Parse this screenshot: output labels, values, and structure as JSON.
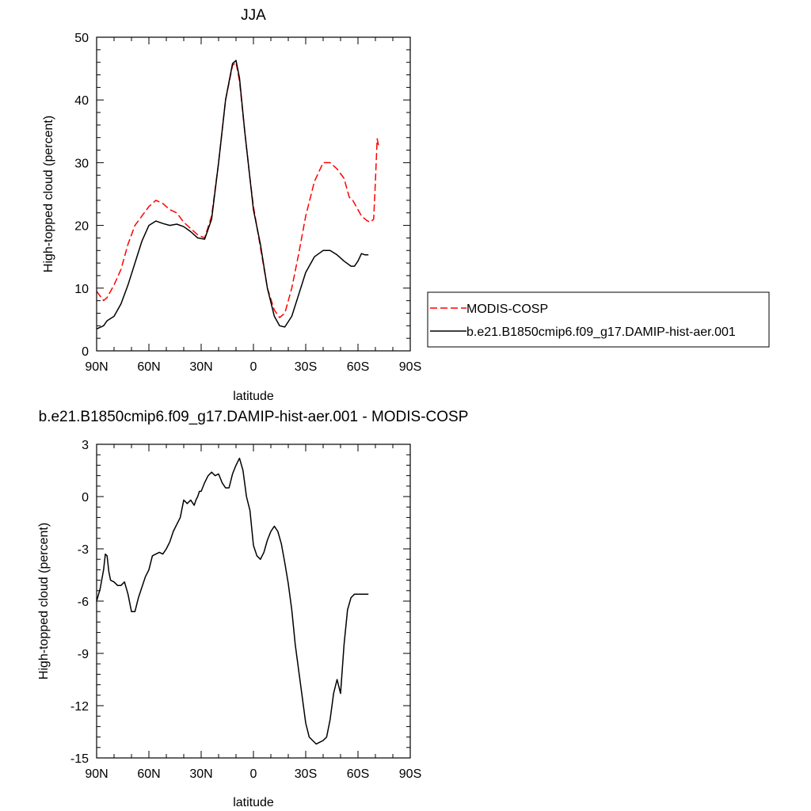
{
  "chart_data": [
    {
      "type": "line",
      "title": "JJA",
      "xlabel": "latitude",
      "ylabel": "High-topped cloud (percent)",
      "xlim": [
        90,
        -90
      ],
      "ylim": [
        0,
        50
      ],
      "xticks": [
        {
          "value": 90,
          "label": "90N"
        },
        {
          "value": 60,
          "label": "60N"
        },
        {
          "value": 30,
          "label": "30N"
        },
        {
          "value": 0,
          "label": "0"
        },
        {
          "value": -30,
          "label": "30S"
        },
        {
          "value": -60,
          "label": "60S"
        },
        {
          "value": -90,
          "label": "90S"
        }
      ],
      "yticks": [
        {
          "value": 0,
          "label": "0"
        },
        {
          "value": 10,
          "label": "10"
        },
        {
          "value": 20,
          "label": "20"
        },
        {
          "value": 30,
          "label": "30"
        },
        {
          "value": 40,
          "label": "40"
        },
        {
          "value": 50,
          "label": "50"
        }
      ],
      "legend": {
        "placement": "right"
      },
      "series": [
        {
          "name": "MODIS-COSP",
          "color": "#ff0000",
          "dash": "dashed",
          "x": [
            90,
            86,
            84,
            80,
            76,
            72,
            68,
            64,
            60,
            56,
            52,
            48,
            44,
            40,
            36,
            32,
            28,
            24,
            20,
            16,
            12,
            10,
            8,
            5,
            2,
            0,
            -4,
            -8,
            -12,
            -15,
            -18,
            -22,
            -26,
            -30,
            -35,
            -40,
            -44,
            -48,
            -52,
            -55,
            -57,
            -60,
            -62,
            -65,
            -67,
            -69,
            -70,
            -71,
            -72
          ],
          "y": [
            9.5,
            8.0,
            8.5,
            10.5,
            13.0,
            17.0,
            20.0,
            21.5,
            23.0,
            24.0,
            23.5,
            22.5,
            22.0,
            20.5,
            19.5,
            18.5,
            18.0,
            21.5,
            30.0,
            40.0,
            45.5,
            46.0,
            43.0,
            35.0,
            27.5,
            23.0,
            16.5,
            10.0,
            6.5,
            5.3,
            6.0,
            10.0,
            15.5,
            21.5,
            27.0,
            30.0,
            30.0,
            29.0,
            27.5,
            24.5,
            24.0,
            22.5,
            21.5,
            20.8,
            20.5,
            21.0,
            27.0,
            33.8,
            32.5
          ]
        },
        {
          "name": "b.e21.B1850cmip6.f09_g17.DAMIP-hist-aer.001",
          "color": "#000000",
          "dash": "solid",
          "x": [
            90,
            86,
            84,
            80,
            76,
            72,
            68,
            64,
            60,
            56,
            52,
            48,
            44,
            40,
            36,
            32,
            28,
            24,
            20,
            16,
            12,
            10,
            8,
            5,
            2,
            0,
            -4,
            -8,
            -12,
            -15,
            -18,
            -22,
            -26,
            -30,
            -35,
            -40,
            -44,
            -48,
            -52,
            -56,
            -58,
            -60,
            -62,
            -64,
            -65,
            -66
          ],
          "y": [
            3.5,
            4.0,
            4.8,
            5.5,
            7.5,
            10.5,
            14.0,
            17.5,
            20.0,
            20.7,
            20.3,
            20.0,
            20.2,
            19.8,
            19.0,
            18.0,
            17.8,
            21.0,
            30.0,
            40.0,
            45.8,
            46.3,
            43.5,
            35.0,
            27.5,
            22.5,
            17.0,
            10.0,
            5.5,
            4.0,
            3.8,
            5.5,
            9.0,
            12.5,
            15.0,
            16.0,
            16.0,
            15.3,
            14.3,
            13.5,
            13.5,
            14.3,
            15.5,
            15.3,
            15.3,
            15.3
          ]
        }
      ]
    },
    {
      "type": "line",
      "title": "b.e21.B1850cmip6.f09_g17.DAMIP-hist-aer.001 - MODIS-COSP",
      "xlabel": "latitude",
      "ylabel": "High-topped cloud (percent)",
      "xlim": [
        90,
        -90
      ],
      "ylim": [
        -15,
        3
      ],
      "xticks": [
        {
          "value": 90,
          "label": "90N"
        },
        {
          "value": 60,
          "label": "60N"
        },
        {
          "value": 30,
          "label": "30N"
        },
        {
          "value": 0,
          "label": "0"
        },
        {
          "value": -30,
          "label": "30S"
        },
        {
          "value": -60,
          "label": "60S"
        },
        {
          "value": -90,
          "label": "90S"
        }
      ],
      "yticks": [
        {
          "value": 3,
          "label": "3"
        },
        {
          "value": 0,
          "label": "0"
        },
        {
          "value": -3,
          "label": "-3"
        },
        {
          "value": -6,
          "label": "-6"
        },
        {
          "value": -9,
          "label": "-9"
        },
        {
          "value": -12,
          "label": "-12"
        },
        {
          "value": -15,
          "label": "-15"
        }
      ],
      "series": [
        {
          "color": "#000000",
          "dash": "solid",
          "x": [
            90,
            88,
            86,
            85,
            84,
            83,
            82,
            80,
            78,
            76,
            74,
            72,
            70,
            68,
            66,
            64,
            62,
            60,
            58,
            56,
            54,
            52,
            50,
            48,
            46,
            44,
            42,
            40,
            38,
            36,
            34,
            33,
            32,
            31,
            30,
            28,
            26,
            24,
            22,
            20,
            18,
            16,
            14,
            12,
            10,
            8,
            6,
            4,
            2,
            1,
            0,
            -2,
            -4,
            -6,
            -8,
            -10,
            -12,
            -14,
            -16,
            -18,
            -20,
            -22,
            -24,
            -26,
            -28,
            -30,
            -32,
            -34,
            -36,
            -38,
            -40,
            -42,
            -44,
            -46,
            -48,
            -50,
            -52,
            -54,
            -56,
            -57,
            -58,
            -59,
            -60,
            -62,
            -63,
            -64,
            -65,
            -66
          ],
          "y": [
            -6.0,
            -5.3,
            -4.2,
            -3.3,
            -3.4,
            -4.3,
            -4.8,
            -4.9,
            -5.1,
            -5.1,
            -4.9,
            -5.6,
            -6.6,
            -6.6,
            -5.8,
            -5.2,
            -4.6,
            -4.2,
            -3.4,
            -3.3,
            -3.2,
            -3.3,
            -3.0,
            -2.6,
            -2.0,
            -1.6,
            -1.2,
            -0.2,
            -0.4,
            -0.2,
            -0.5,
            -0.2,
            0.0,
            0.3,
            0.3,
            0.8,
            1.2,
            1.4,
            1.2,
            1.3,
            0.8,
            0.5,
            0.5,
            1.3,
            1.8,
            2.2,
            1.5,
            0.0,
            -0.8,
            -1.8,
            -2.8,
            -3.4,
            -3.6,
            -3.2,
            -2.5,
            -2.0,
            -1.7,
            -2.0,
            -2.7,
            -3.8,
            -5.0,
            -6.5,
            -8.5,
            -10.0,
            -11.5,
            -13.0,
            -13.8,
            -14.0,
            -14.2,
            -14.1,
            -14.0,
            -13.8,
            -12.8,
            -11.3,
            -10.5,
            -11.3,
            -8.5,
            -6.5,
            -5.8,
            -5.7,
            -5.6,
            -5.6,
            -5.6,
            -5.6,
            -5.6,
            -5.6,
            -5.6,
            -5.6
          ]
        }
      ]
    }
  ]
}
